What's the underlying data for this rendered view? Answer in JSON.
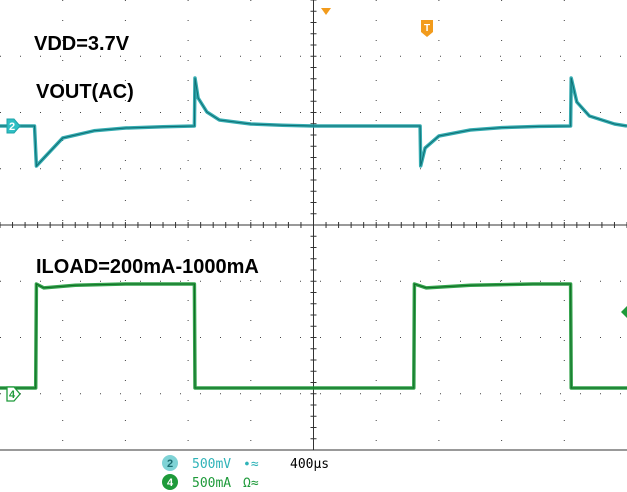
{
  "chart_data": {
    "type": "line",
    "title": "",
    "timebase": "400µs",
    "channels": [
      {
        "id": "2",
        "marker": "2",
        "color": "#1fa3a8",
        "scale": "500mV",
        "scale_suffix": "∙≈",
        "coupling": "AC",
        "series_label": "VOUT(AC)",
        "x": [
          0.0,
          0.3,
          0.55,
          0.58,
          1.0,
          1.5,
          2.0,
          2.6,
          3.1,
          3.11,
          3.16,
          3.3,
          3.5,
          4.0,
          4.5,
          5.0,
          5.5,
          5.8,
          6.15,
          6.4,
          6.7,
          6.71,
          6.78,
          7.0,
          7.5,
          8.0,
          8.6,
          9.1,
          9.11,
          9.2,
          9.4,
          9.8,
          10.0
        ],
        "y": [
          0.0,
          0.0,
          0.0,
          -1.0,
          -0.3,
          -0.12,
          -0.05,
          -0.02,
          0.0,
          1.2,
          0.7,
          0.35,
          0.15,
          0.05,
          0.02,
          0.0,
          0.0,
          0.0,
          0.0,
          0.0,
          0.0,
          -1.0,
          -0.55,
          -0.25,
          -0.1,
          -0.04,
          -0.01,
          0.0,
          1.2,
          0.6,
          0.25,
          0.05,
          0.0
        ]
      },
      {
        "id": "4",
        "marker": "4",
        "color": "#1e9a3a",
        "scale": "500mA",
        "scale_suffix": "Ω≈",
        "series_label": "ILOAD=200mA-1000mA",
        "x": [
          0.0,
          0.57,
          0.58,
          0.7,
          1.2,
          2.0,
          3.1,
          3.11,
          4.0,
          5.0,
          6.6,
          6.61,
          6.8,
          7.5,
          8.5,
          9.1,
          9.11,
          10.0
        ],
        "y": [
          0.2,
          0.2,
          1.0,
          0.97,
          0.99,
          1.0,
          1.0,
          0.2,
          0.2,
          0.2,
          0.2,
          1.0,
          0.97,
          0.99,
          1.0,
          1.0,
          0.2,
          0.2
        ]
      }
    ],
    "annotations": [
      "VDD=3.7V"
    ],
    "trigger_marker": "T",
    "xlim": [
      0,
      10
    ],
    "divisions": {
      "x": 10,
      "y": 8
    },
    "grid": true
  }
}
